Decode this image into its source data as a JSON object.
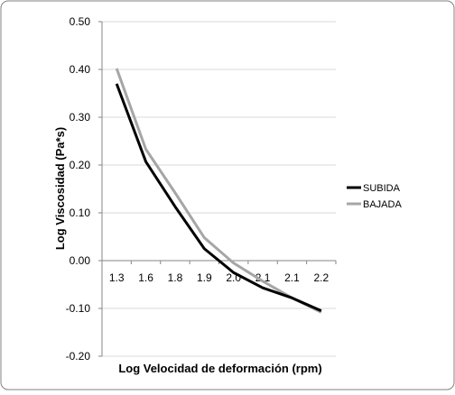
{
  "chart_data": {
    "type": "line",
    "title": "",
    "xlabel": "Log Velocidad de deformación (rpm)",
    "ylabel": "Log Viscosidad (Pa*s)",
    "categories": [
      "1.3",
      "1.6",
      "1.8",
      "1.9",
      "2.0",
      "2.1",
      "2.1",
      "2.2"
    ],
    "ylim": [
      -0.2,
      0.5
    ],
    "yticks": [
      "0.50",
      "0.40",
      "0.30",
      "0.20",
      "0.10",
      "0.00",
      "-0.10",
      "-0.20"
    ],
    "ytick_values": [
      0.5,
      0.4,
      0.3,
      0.2,
      0.1,
      0.0,
      -0.1,
      -0.2
    ],
    "grid": "horizontal",
    "legend_position": "right",
    "series": [
      {
        "name": "SUBIDA",
        "color": "#000000",
        "values": [
          0.37,
          0.207,
          0.113,
          0.025,
          -0.025,
          -0.057,
          -0.078,
          -0.105
        ]
      },
      {
        "name": "BAJADA",
        "color": "#a6a6a6",
        "values": [
          0.402,
          0.233,
          0.142,
          0.048,
          -0.005,
          -0.043,
          -0.078,
          -0.108
        ]
      }
    ]
  }
}
